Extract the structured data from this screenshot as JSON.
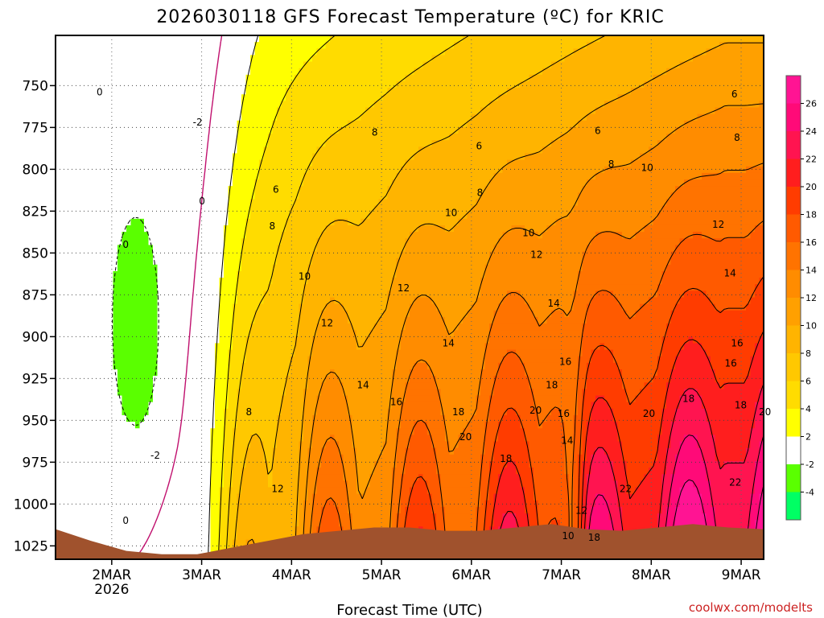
{
  "chart_data": {
    "type": "heatmap",
    "title": "2026030118 GFS Forecast Temperature (ºC) for KRIC",
    "xlabel": "Forecast Time (UTC)",
    "ylabel": "",
    "credit": "coolwx.com/modelts",
    "x_ticks": [
      {
        "label": "2MAR",
        "sublabel": "2026",
        "day": 0.625
      },
      {
        "label": "3MAR",
        "day": 1.625
      },
      {
        "label": "4MAR",
        "day": 2.625
      },
      {
        "label": "5MAR",
        "day": 3.625
      },
      {
        "label": "6MAR",
        "day": 4.625
      },
      {
        "label": "7MAR",
        "day": 5.625
      },
      {
        "label": "8MAR",
        "day": 6.625
      },
      {
        "label": "9MAR",
        "day": 7.625
      }
    ],
    "x_range_days": [
      0,
      7.875
    ],
    "y_range_hpa": [
      1033,
      720
    ],
    "y_ticks": [
      750,
      775,
      800,
      825,
      850,
      875,
      900,
      925,
      950,
      975,
      1000,
      1025
    ],
    "colorbar": {
      "labels": [
        "26",
        "24",
        "22",
        "20",
        "18",
        "16",
        "14",
        "12",
        "10",
        "8",
        "6",
        "4",
        "2",
        "-2",
        "-4"
      ],
      "bins": [
        {
          "lo": 26,
          "hi": 28,
          "color": "#ff1493"
        },
        {
          "lo": 24,
          "hi": 26,
          "color": "#ff0a78"
        },
        {
          "lo": 22,
          "hi": 24,
          "color": "#ff1450"
        },
        {
          "lo": 20,
          "hi": 22,
          "color": "#ff1e1e"
        },
        {
          "lo": 18,
          "hi": 20,
          "color": "#ff3c00"
        },
        {
          "lo": 16,
          "hi": 18,
          "color": "#ff5a00"
        },
        {
          "lo": 14,
          "hi": 16,
          "color": "#ff7300"
        },
        {
          "lo": 12,
          "hi": 14,
          "color": "#ff8c00"
        },
        {
          "lo": 10,
          "hi": 12,
          "color": "#ffa000"
        },
        {
          "lo": 8,
          "hi": 10,
          "color": "#ffb400"
        },
        {
          "lo": 6,
          "hi": 8,
          "color": "#ffc800"
        },
        {
          "lo": 4,
          "hi": 6,
          "color": "#ffdc00"
        },
        {
          "lo": 2,
          "hi": 4,
          "color": "#ffff00"
        },
        {
          "lo": -2,
          "hi": 2,
          "color": "#ffffff"
        },
        {
          "lo": -4,
          "hi": -2,
          "color": "#5aff00"
        },
        {
          "lo": -6,
          "hi": -4,
          "color": "#00ff64"
        }
      ]
    },
    "surface_color": "#a0522d",
    "surface_pressure_hpa": [
      1015,
      1022,
      1028,
      1030,
      1030,
      1026,
      1022,
      1018,
      1016,
      1014,
      1014,
      1016,
      1016,
      1014,
      1012,
      1015,
      1016,
      1014,
      1012,
      1014,
      1015
    ],
    "contour_labels": [
      {
        "text": "0",
        "day": 0.49,
        "hpa": 754
      },
      {
        "text": "-2",
        "day": 1.58,
        "hpa": 772
      },
      {
        "text": "0",
        "day": 1.63,
        "hpa": 819
      },
      {
        "text": "0",
        "day": 0.78,
        "hpa": 845
      },
      {
        "text": "-2",
        "day": 1.11,
        "hpa": 971
      },
      {
        "text": "0",
        "day": 0.78,
        "hpa": 1010
      },
      {
        "text": "6",
        "day": 2.45,
        "hpa": 812
      },
      {
        "text": "8",
        "day": 2.41,
        "hpa": 834
      },
      {
        "text": "10",
        "day": 2.77,
        "hpa": 864
      },
      {
        "text": "12",
        "day": 3.02,
        "hpa": 892
      },
      {
        "text": "8",
        "day": 2.15,
        "hpa": 945
      },
      {
        "text": "12",
        "day": 2.47,
        "hpa": 991
      },
      {
        "text": "14",
        "day": 3.42,
        "hpa": 929
      },
      {
        "text": "16",
        "day": 3.79,
        "hpa": 939
      },
      {
        "text": "12",
        "day": 3.87,
        "hpa": 871
      },
      {
        "text": "8",
        "day": 3.55,
        "hpa": 778
      },
      {
        "text": "10",
        "day": 4.4,
        "hpa": 826
      },
      {
        "text": "14",
        "day": 4.37,
        "hpa": 904
      },
      {
        "text": "18",
        "day": 4.48,
        "hpa": 945
      },
      {
        "text": "20",
        "day": 4.56,
        "hpa": 960
      },
      {
        "text": "18",
        "day": 5.01,
        "hpa": 973
      },
      {
        "text": "6",
        "day": 4.71,
        "hpa": 786
      },
      {
        "text": "8",
        "day": 4.72,
        "hpa": 814
      },
      {
        "text": "10",
        "day": 5.26,
        "hpa": 838
      },
      {
        "text": "12",
        "day": 5.35,
        "hpa": 851
      },
      {
        "text": "14",
        "day": 5.54,
        "hpa": 880
      },
      {
        "text": "16",
        "day": 5.67,
        "hpa": 915
      },
      {
        "text": "18",
        "day": 5.52,
        "hpa": 929
      },
      {
        "text": "20",
        "day": 5.34,
        "hpa": 944
      },
      {
        "text": "16",
        "day": 5.65,
        "hpa": 946
      },
      {
        "text": "14",
        "day": 5.69,
        "hpa": 962
      },
      {
        "text": "22",
        "day": 6.34,
        "hpa": 991
      },
      {
        "text": "12",
        "day": 5.85,
        "hpa": 1004
      },
      {
        "text": "10",
        "day": 5.7,
        "hpa": 1019
      },
      {
        "text": "18",
        "day": 5.99,
        "hpa": 1020
      },
      {
        "text": "6",
        "day": 6.03,
        "hpa": 777
      },
      {
        "text": "8",
        "day": 6.18,
        "hpa": 797
      },
      {
        "text": "10",
        "day": 6.58,
        "hpa": 799
      },
      {
        "text": "20",
        "day": 6.6,
        "hpa": 946
      },
      {
        "text": "18",
        "day": 7.04,
        "hpa": 937
      },
      {
        "text": "6",
        "day": 7.55,
        "hpa": 755
      },
      {
        "text": "8",
        "day": 7.58,
        "hpa": 781
      },
      {
        "text": "12",
        "day": 7.37,
        "hpa": 833
      },
      {
        "text": "14",
        "day": 7.5,
        "hpa": 862
      },
      {
        "text": "16",
        "day": 7.58,
        "hpa": 904
      },
      {
        "text": "16",
        "day": 7.51,
        "hpa": 916
      },
      {
        "text": "18",
        "day": 7.62,
        "hpa": 941
      },
      {
        "text": "20",
        "day": 7.89,
        "hpa": 945
      },
      {
        "text": "22",
        "day": 7.56,
        "hpa": 987
      }
    ]
  }
}
